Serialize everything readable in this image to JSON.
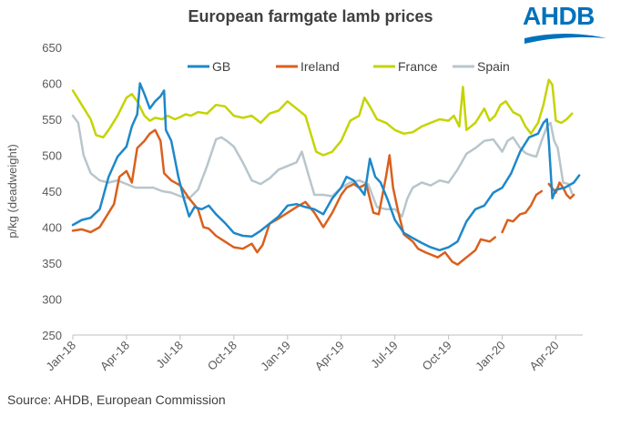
{
  "title": "European farmgate lamb prices",
  "logo_text": "AHDB",
  "source": "Source: AHDB, European Commission",
  "chart_data": {
    "type": "line",
    "title": "European farmgate lamb prices",
    "ylabel": "p/kg (deadweight)",
    "xlabel": "",
    "ylim": [
      250,
      650
    ],
    "yticks": [
      250,
      300,
      350,
      400,
      450,
      500,
      550,
      600,
      650
    ],
    "xticks": [
      "Jan-18",
      "Apr-18",
      "Jul-18",
      "Oct-18",
      "Jan-19",
      "Apr-19",
      "Jul-19",
      "Oct-19",
      "Jan-20",
      "Apr-20"
    ],
    "x_start": 0,
    "x_end": 28.5,
    "grid": "none",
    "legend": "top",
    "series": [
      {
        "name": "GB",
        "color": "#1e88c9",
        "points": [
          [
            0,
            403
          ],
          [
            0.5,
            410
          ],
          [
            1,
            413
          ],
          [
            1.5,
            425
          ],
          [
            2,
            470
          ],
          [
            2.5,
            498
          ],
          [
            3,
            512
          ],
          [
            3.3,
            540
          ],
          [
            3.6,
            557
          ],
          [
            3.75,
            600
          ],
          [
            4,
            585
          ],
          [
            4.3,
            565
          ],
          [
            4.6,
            575
          ],
          [
            4.9,
            582
          ],
          [
            5.1,
            590
          ],
          [
            5.2,
            535
          ],
          [
            5.5,
            520
          ],
          [
            5.9,
            470
          ],
          [
            6.2,
            440
          ],
          [
            6.5,
            415
          ],
          [
            6.8,
            428
          ],
          [
            7.2,
            425
          ],
          [
            7.6,
            430
          ],
          [
            8,
            418
          ],
          [
            8.5,
            406
          ],
          [
            9,
            392
          ],
          [
            9.5,
            388
          ],
          [
            10,
            387
          ],
          [
            10.5,
            395
          ],
          [
            11,
            405
          ],
          [
            11.5,
            415
          ],
          [
            12,
            430
          ],
          [
            12.5,
            432
          ],
          [
            13,
            428
          ],
          [
            13.5,
            425
          ],
          [
            14,
            418
          ],
          [
            14.5,
            440
          ],
          [
            15,
            455
          ],
          [
            15.3,
            470
          ],
          [
            15.7,
            465
          ],
          [
            16,
            455
          ],
          [
            16.3,
            445
          ],
          [
            16.6,
            495
          ],
          [
            16.9,
            470
          ],
          [
            17.2,
            462
          ],
          [
            17.6,
            438
          ],
          [
            18,
            410
          ],
          [
            18.5,
            392
          ],
          [
            19,
            385
          ],
          [
            19.5,
            378
          ],
          [
            20,
            372
          ],
          [
            20.5,
            368
          ],
          [
            21,
            372
          ],
          [
            21.5,
            380
          ],
          [
            22,
            408
          ],
          [
            22.5,
            425
          ],
          [
            23,
            430
          ],
          [
            23.5,
            448
          ],
          [
            24,
            455
          ],
          [
            24.5,
            475
          ],
          [
            25,
            505
          ],
          [
            25.5,
            525
          ],
          [
            26,
            530
          ],
          [
            26.3,
            545
          ],
          [
            26.5,
            550
          ],
          [
            26.6,
            520
          ],
          [
            26.8,
            440
          ],
          [
            27,
            452
          ],
          [
            27.5,
            455
          ],
          [
            28,
            462
          ],
          [
            28.3,
            472
          ]
        ]
      },
      {
        "name": "Ireland",
        "color": "#d9601e",
        "points": [
          [
            0,
            395
          ],
          [
            0.5,
            397
          ],
          [
            1,
            393
          ],
          [
            1.5,
            400
          ],
          [
            2,
            420
          ],
          [
            2.3,
            432
          ],
          [
            2.6,
            470
          ],
          [
            3,
            478
          ],
          [
            3.3,
            462
          ],
          [
            3.6,
            510
          ],
          [
            4,
            520
          ],
          [
            4.3,
            530
          ],
          [
            4.6,
            535
          ],
          [
            4.9,
            520
          ],
          [
            5.1,
            475
          ],
          [
            5.5,
            465
          ],
          [
            6,
            458
          ],
          [
            6.5,
            440
          ],
          [
            7,
            425
          ],
          [
            7.3,
            400
          ],
          [
            7.6,
            398
          ],
          [
            8,
            388
          ],
          [
            8.5,
            380
          ],
          [
            9,
            372
          ],
          [
            9.5,
            370
          ],
          [
            10,
            377
          ],
          [
            10.3,
            365
          ],
          [
            10.6,
            375
          ],
          [
            11,
            405
          ],
          [
            11.5,
            412
          ],
          [
            12,
            420
          ],
          [
            12.5,
            428
          ],
          [
            13,
            435
          ],
          [
            13.5,
            420
          ],
          [
            14,
            400
          ],
          [
            14.5,
            420
          ],
          [
            15,
            445
          ],
          [
            15.3,
            455
          ],
          [
            15.7,
            460
          ],
          [
            16,
            455
          ],
          [
            16.4,
            460
          ],
          [
            16.8,
            420
          ],
          [
            17.1,
            418
          ],
          [
            17.5,
            470
          ],
          [
            17.7,
            500
          ],
          [
            17.9,
            455
          ],
          [
            18.2,
            420
          ],
          [
            18.5,
            390
          ],
          [
            19,
            380
          ],
          [
            19.3,
            370
          ],
          [
            19.7,
            365
          ],
          [
            20,
            362
          ],
          [
            20.4,
            358
          ],
          [
            20.8,
            365
          ],
          [
            21.2,
            352
          ],
          [
            21.5,
            348
          ],
          [
            22,
            358
          ],
          [
            22.5,
            368
          ],
          [
            22.8,
            383
          ],
          [
            23.3,
            380
          ],
          [
            23.6,
            386
          ]
        ],
        "segments": [
          [
            [
              24.0,
              393
            ],
            [
              24.3,
              410
            ],
            [
              24.6,
              408
            ],
            [
              25,
              418
            ],
            [
              25.3,
              420
            ],
            [
              25.6,
              430
            ],
            [
              25.9,
              445
            ],
            [
              26.2,
              450
            ]
          ],
          [
            [
              26.6,
              460
            ],
            [
              27,
              448
            ],
            [
              27.2,
              462
            ],
            [
              27.4,
              455
            ],
            [
              27.6,
              445
            ],
            [
              27.8,
              440
            ],
            [
              28,
              445
            ]
          ]
        ]
      },
      {
        "name": "France",
        "color": "#c5d400",
        "points": [
          [
            0,
            590
          ],
          [
            0.5,
            570
          ],
          [
            1,
            550
          ],
          [
            1.3,
            528
          ],
          [
            1.7,
            525
          ],
          [
            2,
            535
          ],
          [
            2.5,
            555
          ],
          [
            3,
            580
          ],
          [
            3.3,
            585
          ],
          [
            3.6,
            575
          ],
          [
            4,
            555
          ],
          [
            4.3,
            548
          ],
          [
            4.6,
            552
          ],
          [
            5,
            550
          ],
          [
            5.3,
            555
          ],
          [
            5.7,
            550
          ],
          [
            6,
            553
          ],
          [
            6.3,
            557
          ],
          [
            6.6,
            555
          ],
          [
            7,
            560
          ],
          [
            7.5,
            558
          ],
          [
            8,
            570
          ],
          [
            8.5,
            568
          ],
          [
            9,
            555
          ],
          [
            9.5,
            552
          ],
          [
            10,
            555
          ],
          [
            10.5,
            545
          ],
          [
            11,
            558
          ],
          [
            11.5,
            562
          ],
          [
            12,
            575
          ],
          [
            12.5,
            565
          ],
          [
            13,
            555
          ],
          [
            13.3,
            530
          ],
          [
            13.6,
            505
          ],
          [
            14,
            500
          ],
          [
            14.5,
            505
          ],
          [
            15,
            520
          ],
          [
            15.5,
            548
          ],
          [
            16,
            555
          ],
          [
            16.3,
            580
          ],
          [
            16.6,
            568
          ],
          [
            17,
            550
          ],
          [
            17.5,
            545
          ],
          [
            18,
            535
          ],
          [
            18.5,
            530
          ],
          [
            19,
            532
          ],
          [
            19.5,
            540
          ],
          [
            20,
            545
          ],
          [
            20.5,
            550
          ],
          [
            21,
            548
          ],
          [
            21.3,
            555
          ],
          [
            21.6,
            540
          ],
          [
            21.8,
            595
          ],
          [
            22,
            535
          ],
          [
            22.5,
            545
          ],
          [
            23,
            565
          ],
          [
            23.3,
            548
          ],
          [
            23.6,
            555
          ],
          [
            23.9,
            570
          ],
          [
            24.2,
            575
          ],
          [
            24.6,
            560
          ],
          [
            25,
            555
          ],
          [
            25.3,
            540
          ],
          [
            25.6,
            530
          ],
          [
            26,
            545
          ],
          [
            26.3,
            570
          ],
          [
            26.6,
            605
          ],
          [
            26.8,
            598
          ],
          [
            27,
            548
          ],
          [
            27.3,
            545
          ],
          [
            27.6,
            550
          ],
          [
            27.9,
            558
          ]
        ]
      },
      {
        "name": "Spain",
        "color": "#b8c6cc",
        "points": [
          [
            0,
            555
          ],
          [
            0.3,
            545
          ],
          [
            0.6,
            500
          ],
          [
            1,
            475
          ],
          [
            1.5,
            465
          ],
          [
            2,
            462
          ],
          [
            2.5,
            465
          ],
          [
            3,
            460
          ],
          [
            3.5,
            455
          ],
          [
            4,
            455
          ],
          [
            4.5,
            455
          ],
          [
            5,
            450
          ],
          [
            5.5,
            448
          ],
          [
            6,
            443
          ],
          [
            6.5,
            440
          ],
          [
            7,
            452
          ],
          [
            7.5,
            485
          ],
          [
            8,
            522
          ],
          [
            8.3,
            525
          ],
          [
            8.6,
            520
          ],
          [
            9,
            512
          ],
          [
            9.5,
            490
          ],
          [
            10,
            465
          ],
          [
            10.5,
            460
          ],
          [
            11,
            468
          ],
          [
            11.5,
            480
          ],
          [
            12,
            485
          ],
          [
            12.5,
            490
          ],
          [
            12.8,
            505
          ],
          [
            13.2,
            470
          ],
          [
            13.5,
            445
          ],
          [
            14,
            445
          ],
          [
            14.5,
            443
          ],
          [
            15,
            455
          ],
          [
            15.5,
            462
          ],
          [
            16,
            465
          ],
          [
            16.5,
            460
          ],
          [
            17,
            428
          ],
          [
            17.5,
            425
          ],
          [
            18,
            425
          ],
          [
            18.4,
            415
          ],
          [
            18.7,
            440
          ],
          [
            19,
            455
          ],
          [
            19.5,
            462
          ],
          [
            20,
            458
          ],
          [
            20.5,
            465
          ],
          [
            21,
            462
          ],
          [
            21.5,
            480
          ],
          [
            22,
            502
          ],
          [
            22.5,
            510
          ],
          [
            23,
            520
          ],
          [
            23.5,
            522
          ],
          [
            24,
            505
          ],
          [
            24.3,
            520
          ],
          [
            24.6,
            525
          ],
          [
            25,
            510
          ],
          [
            25.3,
            503
          ],
          [
            25.6,
            500
          ],
          [
            25.9,
            498
          ],
          [
            26.2,
            520
          ],
          [
            26.5,
            540
          ],
          [
            26.7,
            545
          ],
          [
            26.9,
            520
          ],
          [
            27.1,
            510
          ],
          [
            27.4,
            462
          ],
          [
            27.7,
            460
          ],
          [
            27.9,
            447
          ]
        ]
      }
    ]
  }
}
